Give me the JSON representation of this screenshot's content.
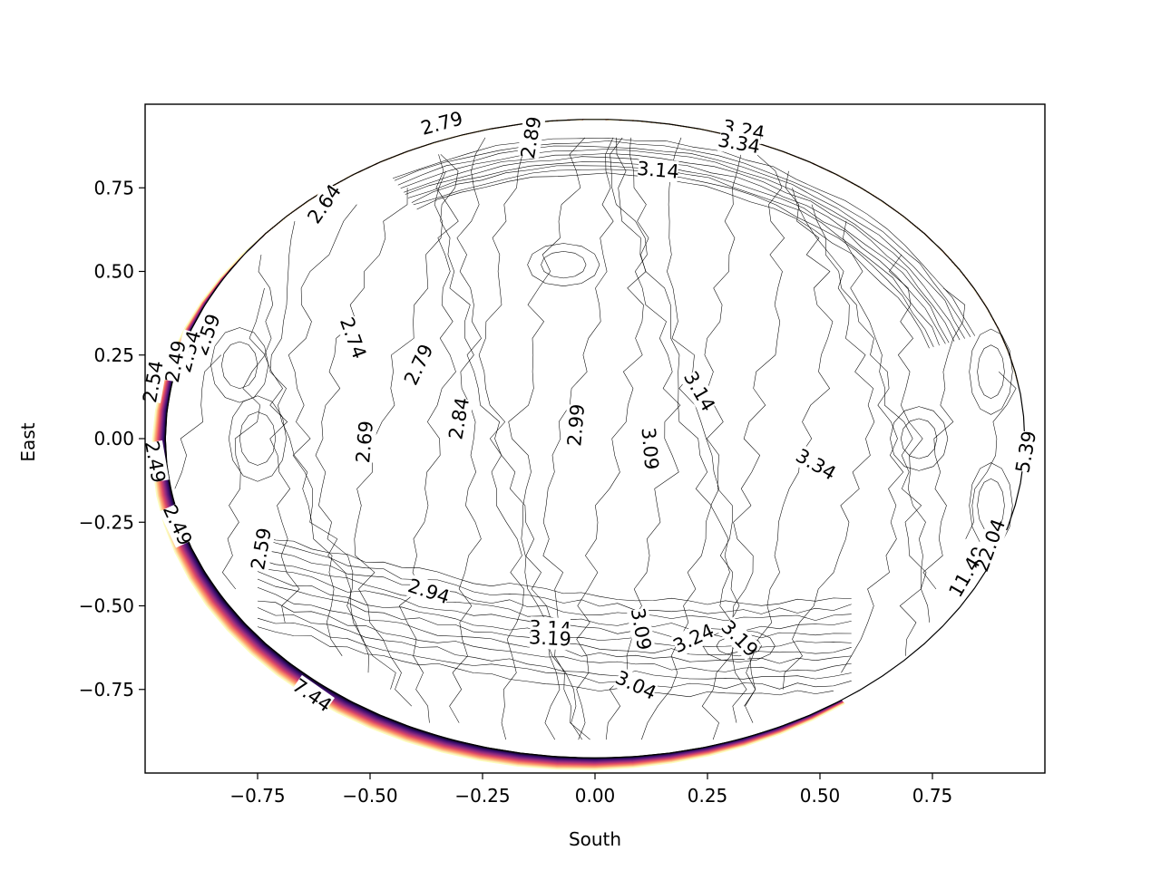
{
  "chart_data": {
    "type": "contour",
    "title": "",
    "xlabel": "South",
    "ylabel": "East",
    "xlim": [
      -1.0,
      1.0
    ],
    "ylim": [
      -1.0,
      1.0
    ],
    "x_ticks": [
      -0.75,
      -0.5,
      -0.25,
      0.0,
      0.25,
      0.5,
      0.75
    ],
    "x_tick_labels": [
      "−0.75",
      "−0.50",
      "−0.25",
      "0.00",
      "0.25",
      "0.50",
      "0.75"
    ],
    "y_ticks": [
      0.75,
      0.5,
      0.25,
      0.0,
      -0.25,
      -0.5,
      -0.75
    ],
    "y_tick_labels": [
      "0.75",
      "0.50",
      "0.25",
      "0.00",
      "−0.25",
      "−0.50",
      "−0.75"
    ],
    "grid": false,
    "colormap": "magma",
    "colormap_colors": [
      "#000004",
      "#3b0f70",
      "#8c2981",
      "#de4968",
      "#fe9f6d",
      "#fcfdbf"
    ],
    "contour_labels": [
      {
        "text": "2.79",
        "x": -0.34,
        "y": 0.94,
        "rotation": -15
      },
      {
        "text": "2.89",
        "x": -0.14,
        "y": 0.9,
        "rotation": -80
      },
      {
        "text": "3.24",
        "x": 0.33,
        "y": 0.92,
        "rotation": 10
      },
      {
        "text": "3.34",
        "x": 0.32,
        "y": 0.88,
        "rotation": 10
      },
      {
        "text": "3.14",
        "x": 0.14,
        "y": 0.8,
        "rotation": 5
      },
      {
        "text": "2.64",
        "x": -0.6,
        "y": 0.7,
        "rotation": -55
      },
      {
        "text": "2.59",
        "x": -0.86,
        "y": 0.31,
        "rotation": -70
      },
      {
        "text": "2.54",
        "x": -0.9,
        "y": 0.26,
        "rotation": -75
      },
      {
        "text": "2.49",
        "x": -0.93,
        "y": 0.23,
        "rotation": -80
      },
      {
        "text": "2.54",
        "x": -0.98,
        "y": 0.17,
        "rotation": -80
      },
      {
        "text": "2.74",
        "x": -0.54,
        "y": 0.3,
        "rotation": 70
      },
      {
        "text": "2.79",
        "x": -0.39,
        "y": 0.22,
        "rotation": -65
      },
      {
        "text": "2.84",
        "x": -0.3,
        "y": 0.06,
        "rotation": -80
      },
      {
        "text": "2.69",
        "x": -0.51,
        "y": -0.01,
        "rotation": -85
      },
      {
        "text": "2.99",
        "x": -0.04,
        "y": 0.04,
        "rotation": -85
      },
      {
        "text": "3.09",
        "x": 0.12,
        "y": -0.03,
        "rotation": 85
      },
      {
        "text": "3.14",
        "x": 0.23,
        "y": 0.14,
        "rotation": 60
      },
      {
        "text": "3.34",
        "x": 0.49,
        "y": -0.08,
        "rotation": 30
      },
      {
        "text": "5.39",
        "x": 0.96,
        "y": -0.04,
        "rotation": -80
      },
      {
        "text": "2.49",
        "x": -0.98,
        "y": -0.07,
        "rotation": 80
      },
      {
        "text": "2.49",
        "x": -0.93,
        "y": -0.26,
        "rotation": 65
      },
      {
        "text": "2.59",
        "x": -0.74,
        "y": -0.33,
        "rotation": -80
      },
      {
        "text": "2.94",
        "x": -0.37,
        "y": -0.46,
        "rotation": 18
      },
      {
        "text": "3.14",
        "x": -0.1,
        "y": -0.57,
        "rotation": 3
      },
      {
        "text": "3.19",
        "x": -0.1,
        "y": -0.6,
        "rotation": 3
      },
      {
        "text": "3.09",
        "x": 0.1,
        "y": -0.57,
        "rotation": 80
      },
      {
        "text": "3.24",
        "x": 0.22,
        "y": -0.6,
        "rotation": -25
      },
      {
        "text": "3.19",
        "x": 0.32,
        "y": -0.6,
        "rotation": 45
      },
      {
        "text": "3.04",
        "x": 0.09,
        "y": -0.74,
        "rotation": 25
      },
      {
        "text": "7.44",
        "x": -0.63,
        "y": -0.77,
        "rotation": 35
      },
      {
        "text": "11.49",
        "x": 0.83,
        "y": -0.4,
        "rotation": -60
      },
      {
        "text": "22.04",
        "x": 0.88,
        "y": -0.32,
        "rotation": -70
      }
    ]
  }
}
